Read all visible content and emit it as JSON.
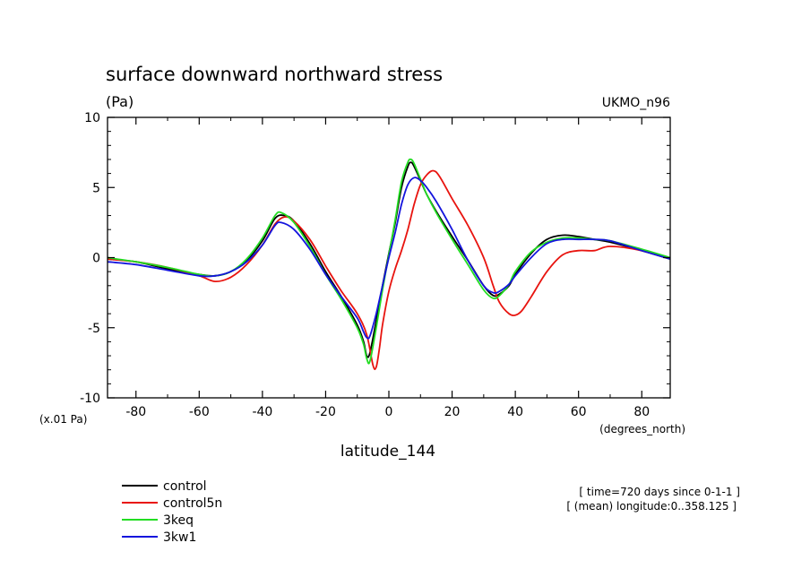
{
  "chart_data": {
    "type": "line",
    "title": "surface downward northward stress",
    "units": "(Pa)",
    "model": "UKMO_n96",
    "xlabel": "latitude_144",
    "xunits": "(degrees_north)",
    "ylabel_scale": "(x.01 Pa)",
    "xlim": [
      -89,
      89
    ],
    "ylim": [
      -10,
      10
    ],
    "xticks": [
      -80,
      -60,
      -40,
      -20,
      0,
      20,
      40,
      60,
      80
    ],
    "yticks": [
      -10,
      -5,
      0,
      5,
      10
    ],
    "grid": false,
    "legend_position": "bottom-left",
    "info_lines": [
      "[ time=720 days since 0-1-1 ]",
      "[ (mean) longitude:0..358.125 ]"
    ],
    "series": [
      {
        "name": "control",
        "color": "#000000",
        "x": [
          -89,
          -80,
          -70,
          -60,
          -55,
          -50,
          -45,
          -40,
          -36,
          -33,
          -30,
          -25,
          -20,
          -15,
          -10,
          -8,
          -7,
          -6,
          -4,
          -2,
          0,
          2,
          4,
          6,
          7,
          8,
          10,
          12,
          15,
          20,
          25,
          30,
          33,
          35,
          38,
          40,
          45,
          50,
          55,
          60,
          65,
          70,
          80,
          89
        ],
        "y": [
          -0.1,
          -0.3,
          -0.8,
          -1.2,
          -1.3,
          -1.0,
          -0.2,
          1.2,
          2.8,
          3.0,
          2.6,
          1.0,
          -1.0,
          -2.8,
          -4.8,
          -6.0,
          -7.0,
          -6.8,
          -4.5,
          -2.0,
          0.3,
          2.5,
          5.0,
          6.5,
          6.8,
          6.5,
          5.5,
          4.5,
          3.3,
          1.5,
          -0.2,
          -2.0,
          -2.7,
          -2.6,
          -2.0,
          -1.2,
          0.3,
          1.3,
          1.6,
          1.5,
          1.3,
          1.1,
          0.5,
          -0.1
        ]
      },
      {
        "name": "control5n",
        "color": "#e8140f",
        "x": [
          -89,
          -80,
          -70,
          -60,
          -55,
          -50,
          -45,
          -40,
          -36,
          -33,
          -30,
          -25,
          -20,
          -15,
          -10,
          -7,
          -5,
          -4,
          -3,
          -2,
          0,
          2,
          4,
          6,
          8,
          10,
          12,
          14,
          16,
          20,
          25,
          30,
          33,
          35,
          38,
          40,
          42,
          45,
          50,
          55,
          60,
          65,
          70,
          80,
          89
        ],
        "y": [
          -0.1,
          -0.3,
          -0.7,
          -1.3,
          -1.7,
          -1.4,
          -0.5,
          0.9,
          2.4,
          2.9,
          2.6,
          1.3,
          -0.6,
          -2.4,
          -4.0,
          -5.5,
          -7.7,
          -7.8,
          -6.5,
          -4.8,
          -2.4,
          -0.8,
          0.5,
          2.0,
          3.8,
          5.2,
          5.9,
          6.2,
          5.8,
          4.2,
          2.3,
          0.0,
          -2.0,
          -3.2,
          -4.0,
          -4.1,
          -3.8,
          -2.8,
          -1.0,
          0.2,
          0.5,
          0.5,
          0.8,
          0.5,
          -0.1
        ]
      },
      {
        "name": "3keq",
        "color": "#22dd22",
        "x": [
          -89,
          -80,
          -70,
          -60,
          -55,
          -50,
          -45,
          -40,
          -36,
          -34,
          -30,
          -25,
          -20,
          -15,
          -10,
          -8,
          -7,
          -6,
          -4,
          -2,
          0,
          2,
          4,
          6,
          7,
          8,
          10,
          12,
          15,
          20,
          25,
          30,
          33,
          35,
          38,
          40,
          45,
          50,
          55,
          60,
          65,
          70,
          80,
          89
        ],
        "y": [
          0.0,
          -0.3,
          -0.7,
          -1.2,
          -1.3,
          -1.0,
          -0.1,
          1.4,
          3.0,
          3.2,
          2.5,
          0.8,
          -1.2,
          -3.0,
          -5.0,
          -6.2,
          -7.2,
          -7.4,
          -5.0,
          -2.3,
          0.2,
          2.7,
          5.4,
          6.8,
          7.0,
          6.7,
          5.6,
          4.5,
          3.2,
          1.3,
          -0.5,
          -2.3,
          -2.9,
          -2.7,
          -1.9,
          -1.0,
          0.4,
          1.1,
          1.4,
          1.4,
          1.3,
          1.2,
          0.6,
          0.0
        ]
      },
      {
        "name": "3kw1",
        "color": "#1414dd",
        "x": [
          -89,
          -80,
          -70,
          -60,
          -55,
          -50,
          -45,
          -40,
          -36,
          -34,
          -30,
          -25,
          -20,
          -15,
          -10,
          -8,
          -7,
          -6,
          -4,
          -2,
          0,
          2,
          4,
          6,
          8,
          10,
          12,
          15,
          20,
          25,
          30,
          33,
          35,
          38,
          40,
          45,
          50,
          55,
          60,
          65,
          70,
          80,
          89
        ],
        "y": [
          -0.3,
          -0.5,
          -0.9,
          -1.3,
          -1.3,
          -1.0,
          -0.3,
          0.9,
          2.3,
          2.5,
          2.0,
          0.6,
          -1.2,
          -2.8,
          -4.3,
          -5.3,
          -5.7,
          -5.6,
          -4.0,
          -2.0,
          0.0,
          1.8,
          3.8,
          5.2,
          5.7,
          5.5,
          5.0,
          4.0,
          2.0,
          -0.2,
          -2.0,
          -2.5,
          -2.4,
          -1.9,
          -1.3,
          0.0,
          1.0,
          1.3,
          1.3,
          1.3,
          1.2,
          0.5,
          -0.1
        ]
      }
    ]
  }
}
